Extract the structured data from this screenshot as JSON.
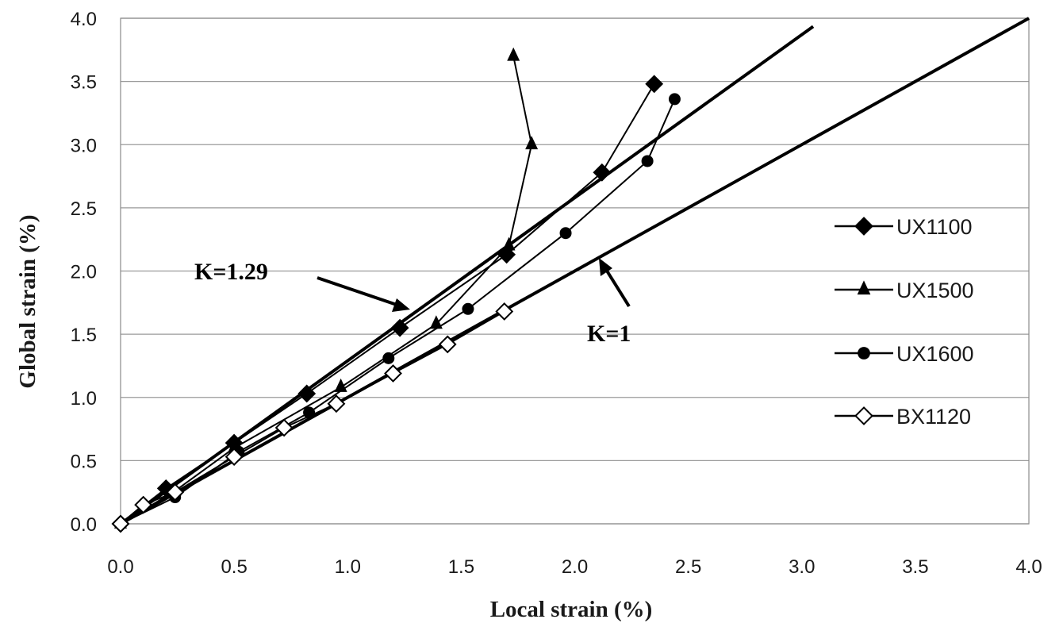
{
  "chart_data": {
    "type": "scatter",
    "title": "",
    "xlabel": "Local strain (%)",
    "ylabel": "Global strain (%)",
    "xlim": [
      0,
      4
    ],
    "ylim": [
      0,
      4
    ],
    "x_ticks": [
      "0.0",
      "0.5",
      "1.0",
      "1.5",
      "2.0",
      "2.5",
      "3.0",
      "3.5",
      "4.0"
    ],
    "y_ticks": [
      "0.0",
      "0.5",
      "1.0",
      "1.5",
      "2.0",
      "2.5",
      "3.0",
      "3.5",
      "4.0"
    ],
    "grid": "horizontal",
    "legend_position": "right",
    "series": [
      {
        "name": "UX1100",
        "marker": "diamond-filled",
        "points": [
          [
            0.0,
            0.0
          ],
          [
            0.2,
            0.28
          ],
          [
            0.5,
            0.64
          ],
          [
            0.82,
            1.03
          ],
          [
            1.23,
            1.55
          ],
          [
            1.7,
            2.13
          ],
          [
            2.12,
            2.78
          ],
          [
            2.35,
            3.48
          ]
        ]
      },
      {
        "name": "UX1500",
        "marker": "triangle-filled",
        "points": [
          [
            0.0,
            0.0
          ],
          [
            0.24,
            0.26
          ],
          [
            0.5,
            0.6
          ],
          [
            0.97,
            1.08
          ],
          [
            1.39,
            1.58
          ],
          [
            1.71,
            2.2
          ],
          [
            1.81,
            3.0
          ],
          [
            1.73,
            3.7
          ]
        ]
      },
      {
        "name": "UX1600",
        "marker": "circle-filled",
        "points": [
          [
            0.0,
            0.0
          ],
          [
            0.24,
            0.21
          ],
          [
            0.52,
            0.57
          ],
          [
            0.83,
            0.88
          ],
          [
            1.18,
            1.31
          ],
          [
            1.53,
            1.7
          ],
          [
            1.96,
            2.3
          ],
          [
            2.32,
            2.87
          ],
          [
            2.44,
            3.36
          ]
        ]
      },
      {
        "name": "BX1120",
        "marker": "diamond-open",
        "points": [
          [
            0.0,
            0.0
          ],
          [
            0.1,
            0.15
          ],
          [
            0.24,
            0.25
          ],
          [
            0.5,
            0.53
          ],
          [
            0.72,
            0.76
          ],
          [
            0.95,
            0.95
          ],
          [
            1.2,
            1.19
          ],
          [
            1.44,
            1.42
          ],
          [
            1.69,
            1.68
          ]
        ]
      }
    ],
    "reference_lines": [
      {
        "label": "K=1.29",
        "slope": 1.29,
        "x_range": [
          0,
          3.05
        ]
      },
      {
        "label": "K=1",
        "slope": 1.0,
        "x_range": [
          0,
          4.0
        ]
      }
    ],
    "annotations": [
      {
        "text": "K=1.29",
        "target_line": "K=1.29"
      },
      {
        "text": "K=1",
        "target_line": "K=1"
      }
    ]
  }
}
